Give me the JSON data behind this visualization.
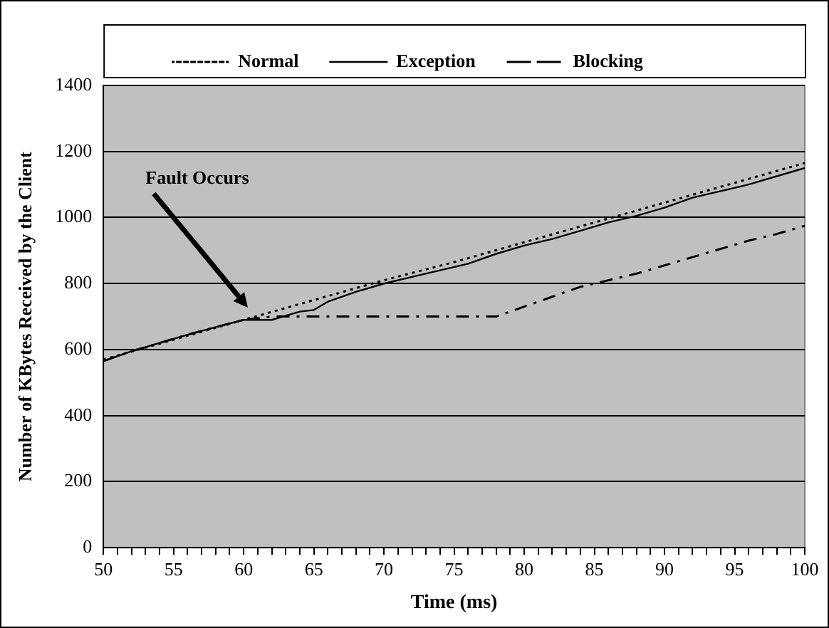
{
  "chart_data": {
    "type": "line",
    "xlabel": "Time (ms)",
    "ylabel": "Number of KBytes Received by the Client",
    "xlim": [
      50,
      100
    ],
    "ylim": [
      0,
      1400
    ],
    "xticks": [
      50,
      {
        "value": 51,
        "label": null
      },
      {
        "value": 52,
        "label": null
      },
      {
        "value": 53,
        "label": null
      },
      {
        "value": 54,
        "label": null
      },
      55,
      {
        "value": 56,
        "label": null
      },
      {
        "value": 57,
        "label": null
      },
      {
        "value": 58,
        "label": null
      },
      {
        "value": 59,
        "label": null
      },
      60,
      {
        "value": 61,
        "label": null
      },
      {
        "value": 62,
        "label": null
      },
      {
        "value": 63,
        "label": null
      },
      {
        "value": 64,
        "label": null
      },
      65,
      {
        "value": 66,
        "label": null
      },
      {
        "value": 67,
        "label": null
      },
      {
        "value": 68,
        "label": null
      },
      {
        "value": 69,
        "label": null
      },
      70,
      {
        "value": 71,
        "label": null
      },
      {
        "value": 72,
        "label": null
      },
      {
        "value": 73,
        "label": null
      },
      {
        "value": 74,
        "label": null
      },
      75,
      {
        "value": 76,
        "label": null
      },
      {
        "value": 77,
        "label": null
      },
      {
        "value": 78,
        "label": null
      },
      {
        "value": 79,
        "label": null
      },
      80,
      {
        "value": 81,
        "label": null
      },
      {
        "value": 82,
        "label": null
      },
      {
        "value": 83,
        "label": null
      },
      {
        "value": 84,
        "label": null
      },
      85,
      {
        "value": 86,
        "label": null
      },
      {
        "value": 87,
        "label": null
      },
      {
        "value": 88,
        "label": null
      },
      {
        "value": 89,
        "label": null
      },
      90,
      {
        "value": 91,
        "label": null
      },
      {
        "value": 92,
        "label": null
      },
      {
        "value": 93,
        "label": null
      },
      {
        "value": 94,
        "label": null
      },
      95,
      {
        "value": 96,
        "label": null
      },
      {
        "value": 97,
        "label": null
      },
      {
        "value": 98,
        "label": null
      },
      {
        "value": 99,
        "label": null
      },
      100
    ],
    "yticks": [
      0,
      200,
      400,
      600,
      800,
      1000,
      1200,
      1400
    ],
    "grid": "y",
    "legend": "top",
    "marker": "none",
    "series": [
      {
        "name": "Normal",
        "color": "#000000",
        "line_style": "dotted",
        "x": [
          50,
          55,
          60,
          65,
          70,
          75,
          80,
          85,
          90,
          95,
          100
        ],
        "values": [
          570,
          630,
          690,
          750,
          810,
          865,
          925,
          985,
          1045,
          1105,
          1165
        ]
      },
      {
        "name": "Exception",
        "color": "#000000",
        "line_style": "solid",
        "x": [
          50,
          52,
          54,
          56,
          58,
          60,
          62,
          64,
          65,
          66,
          68,
          70,
          72,
          74,
          76,
          78,
          80,
          82,
          84,
          86,
          88,
          90,
          92,
          94,
          96,
          98,
          100
        ],
        "values": [
          565,
          595,
          620,
          645,
          668,
          690,
          690,
          715,
          720,
          745,
          775,
          800,
          820,
          840,
          860,
          890,
          915,
          935,
          960,
          985,
          1005,
          1030,
          1060,
          1080,
          1100,
          1125,
          1150
        ]
      },
      {
        "name": "Blocking",
        "color": "#000000",
        "line_style": "dashdot",
        "x": [
          50,
          52,
          54,
          56,
          58,
          60,
          62,
          66,
          70,
          74,
          78,
          79,
          80,
          82,
          84,
          86,
          88,
          90,
          92,
          94,
          96,
          98,
          100
        ],
        "values": [
          565,
          595,
          620,
          645,
          668,
          690,
          700,
          700,
          700,
          700,
          700,
          715,
          730,
          760,
          790,
          810,
          830,
          855,
          880,
          905,
          930,
          950,
          975
        ]
      }
    ],
    "annotations": [
      "Fault Occurs"
    ]
  }
}
